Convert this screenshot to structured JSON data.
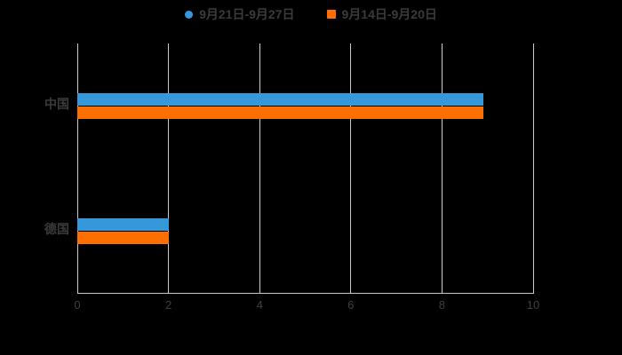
{
  "chart_data": {
    "type": "bar",
    "orientation": "horizontal",
    "title": "",
    "categories": [
      "中国",
      "德国"
    ],
    "series": [
      {
        "name": "9月21日-9月27日",
        "color": "#3498db",
        "marker": "circle",
        "values": [
          8.9,
          2
        ]
      },
      {
        "name": "9月14日-9月20日",
        "color": "#ff6f00",
        "marker": "square",
        "values": [
          8.9,
          2
        ]
      }
    ],
    "xlim": [
      0,
      10
    ],
    "xticks": [
      "0",
      "2",
      "4",
      "6",
      "8",
      "10"
    ],
    "xtick_values": [
      0,
      2,
      4,
      6,
      8,
      10
    ],
    "grid": true,
    "legend_position": "top",
    "colors": {
      "background": "#000000",
      "grid_line": "#cccccc",
      "axis_line": "#c9c9c9",
      "tick_label": "#3f3f3f",
      "category_label": "#3c3c3c",
      "legend_text": "#3a3a3a"
    }
  }
}
